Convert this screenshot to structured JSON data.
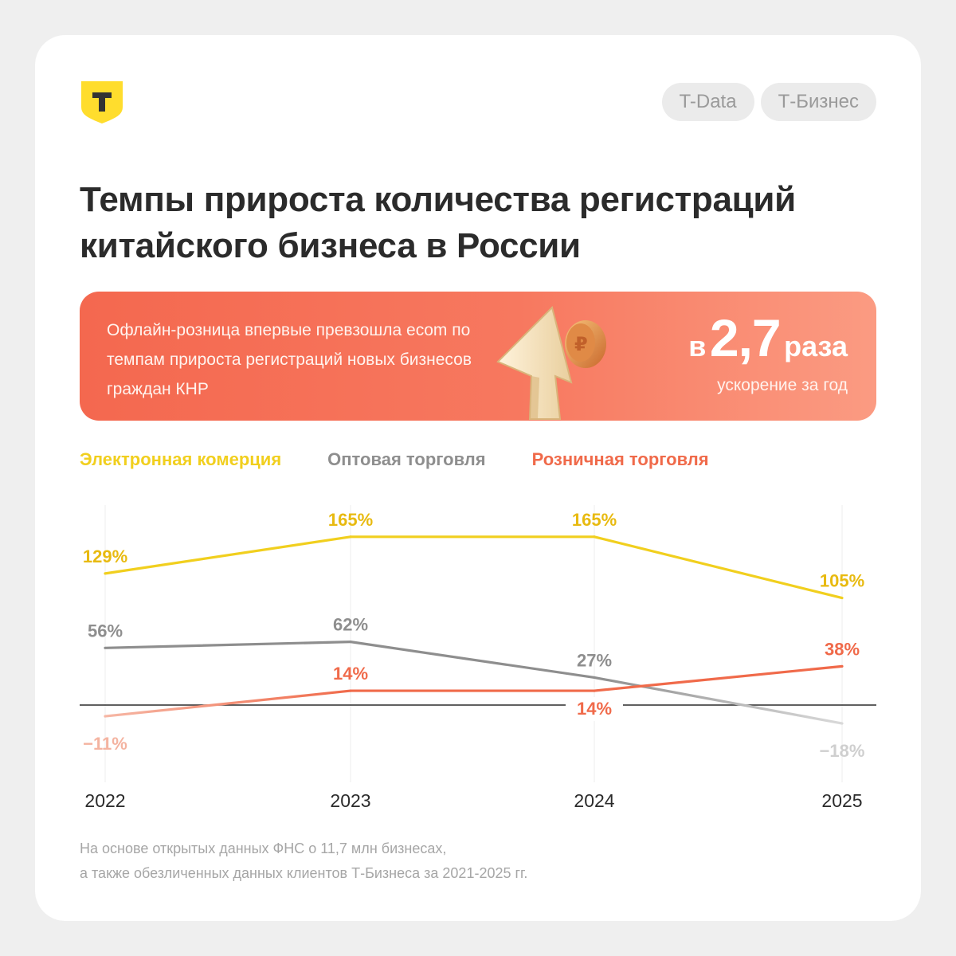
{
  "header": {
    "pills": [
      "T-Data",
      "Т-Бизнес"
    ]
  },
  "title": "Темпы прироста количества регистраций китайского бизнеса в России",
  "banner": {
    "text": "Офлайн-розница впервые превзошла ecom по темпам прироста регистраций новых бизнесов граждан КНР",
    "prefix": "в",
    "number": "2,7",
    "suffix": "раза",
    "subtitle": "ускорение за год"
  },
  "colors": {
    "ecom": "#f1cf1e",
    "ecom_label": "#e8ba10",
    "wholesale": "#8e8e8e",
    "retail": "#f06a4a",
    "accent": "#f4684f"
  },
  "chart_data": {
    "type": "line",
    "x": [
      "2022",
      "2023",
      "2024",
      "2025"
    ],
    "series": [
      {
        "name": "Электронная комерция",
        "values": [
          129,
          165,
          165,
          105
        ],
        "labels": [
          "129%",
          "165%",
          "165%",
          "105%"
        ],
        "color": "#f1cf1e"
      },
      {
        "name": "Оптовая торговля",
        "values": [
          56,
          62,
          27,
          -18
        ],
        "labels": [
          "56%",
          "62%",
          "27%",
          "−18%"
        ],
        "color": "#8e8e8e"
      },
      {
        "name": "Розничная торговля",
        "values": [
          -11,
          14,
          14,
          38
        ],
        "labels": [
          "−11%",
          "14%",
          "14%",
          "38%"
        ],
        "color": "#f06a4a"
      }
    ],
    "ylim": [
      -30,
      180
    ],
    "grid": "vertical"
  },
  "footnote": [
    "На основе открытых данных ФНС о 11,7 млн бизнесах,",
    "а также обезличенных данных клиентов Т-Бизнеса за 2021-2025 гг."
  ]
}
